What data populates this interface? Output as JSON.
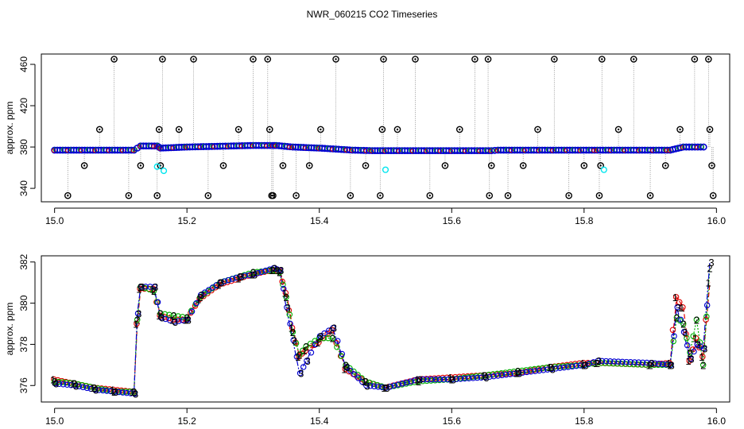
{
  "title": "NWR_060215  CO2 Timeseries",
  "colors": {
    "flag": "#000000",
    "ref": "#00e5ee",
    "s1": "#e00000",
    "s2": "#00b000",
    "s3": "#0000d0",
    "line": "#888888"
  },
  "chart_data": [
    {
      "type": "scatter",
      "ylabel": "approx. ppm",
      "xlim": [
        14.98,
        16.02
      ],
      "ylim": [
        327,
        470
      ],
      "xticks": [
        15.0,
        15.2,
        15.4,
        15.6,
        15.8,
        16.0
      ],
      "xtick_labels": [
        "15.0",
        "15.2",
        "15.4",
        "15.6",
        "15.8",
        "16.0"
      ],
      "yticks": [
        340,
        380,
        420,
        460
      ],
      "ytick_labels": [
        "340",
        "380",
        "420",
        "460"
      ],
      "baseline": [
        [
          15.0,
          377
        ],
        [
          15.12,
          377
        ],
        [
          15.13,
          381
        ],
        [
          15.155,
          381
        ],
        [
          15.16,
          379
        ],
        [
          15.2,
          380
        ],
        [
          15.3,
          381.5
        ],
        [
          15.33,
          381.5
        ],
        [
          15.335,
          381.5
        ],
        [
          15.36,
          380
        ],
        [
          15.4,
          379
        ],
        [
          15.45,
          377
        ],
        [
          15.48,
          376.5
        ],
        [
          15.5,
          376.5
        ],
        [
          15.6,
          376.5
        ],
        [
          15.66,
          376.5
        ],
        [
          15.67,
          377
        ],
        [
          15.82,
          377
        ],
        [
          15.93,
          377
        ],
        [
          15.95,
          380
        ],
        [
          15.985,
          380
        ]
      ],
      "reference_points": [
        [
          15.155,
          361
        ],
        [
          15.165,
          357
        ],
        [
          15.5,
          358
        ],
        [
          15.83,
          358
        ]
      ],
      "flagged_points": [
        [
          15.02,
          333
        ],
        [
          15.045,
          362
        ],
        [
          15.068,
          397
        ],
        [
          15.09,
          465
        ],
        [
          15.112,
          333
        ],
        [
          15.13,
          362
        ],
        [
          15.155,
          333
        ],
        [
          15.158,
          397
        ],
        [
          15.16,
          362
        ],
        [
          15.163,
          465
        ],
        [
          15.188,
          397
        ],
        [
          15.21,
          465
        ],
        [
          15.232,
          333
        ],
        [
          15.255,
          362
        ],
        [
          15.278,
          397
        ],
        [
          15.3,
          465
        ],
        [
          15.322,
          465
        ],
        [
          15.325,
          397
        ],
        [
          15.328,
          333
        ],
        [
          15.33,
          333
        ],
        [
          15.345,
          362
        ],
        [
          15.365,
          333
        ],
        [
          15.385,
          362
        ],
        [
          15.402,
          397
        ],
        [
          15.425,
          465
        ],
        [
          15.447,
          333
        ],
        [
          15.47,
          362
        ],
        [
          15.492,
          333
        ],
        [
          15.495,
          397
        ],
        [
          15.497,
          465
        ],
        [
          15.518,
          397
        ],
        [
          15.545,
          465
        ],
        [
          15.567,
          333
        ],
        [
          15.59,
          362
        ],
        [
          15.612,
          397
        ],
        [
          15.635,
          465
        ],
        [
          15.655,
          465
        ],
        [
          15.657,
          333
        ],
        [
          15.66,
          362
        ],
        [
          15.685,
          333
        ],
        [
          15.708,
          362
        ],
        [
          15.73,
          397
        ],
        [
          15.755,
          465
        ],
        [
          15.777,
          333
        ],
        [
          15.8,
          362
        ],
        [
          15.823,
          333
        ],
        [
          15.825,
          362
        ],
        [
          15.827,
          465
        ],
        [
          15.852,
          397
        ],
        [
          15.875,
          465
        ],
        [
          15.9,
          333
        ],
        [
          15.923,
          362
        ],
        [
          15.945,
          397
        ],
        [
          15.967,
          465
        ],
        [
          15.988,
          465
        ],
        [
          15.99,
          397
        ],
        [
          15.993,
          362
        ],
        [
          15.995,
          333
        ]
      ]
    },
    {
      "type": "line",
      "ylabel": "approx. ppm",
      "xlim": [
        14.98,
        16.02
      ],
      "ylim": [
        375.2,
        382.3
      ],
      "xticks": [
        15.0,
        15.2,
        15.4,
        15.6,
        15.8,
        16.0
      ],
      "xtick_labels": [
        "15.0",
        "15.2",
        "15.4",
        "15.6",
        "15.8",
        "16.0"
      ],
      "yticks": [
        376,
        378,
        380,
        382
      ],
      "ytick_labels": [
        "376",
        "378",
        "380",
        "382"
      ],
      "series": [
        {
          "label_char": "1",
          "x": [
            15.0,
            15.03,
            15.06,
            15.09,
            15.12,
            15.125,
            15.13,
            15.15,
            15.16,
            15.18,
            15.2,
            15.22,
            15.25,
            15.28,
            15.3,
            15.33,
            15.34,
            15.35,
            15.36,
            15.37,
            15.38,
            15.4,
            15.42,
            15.44,
            15.47,
            15.5,
            15.55,
            15.6,
            15.65,
            15.7,
            15.75,
            15.8,
            15.82,
            15.9,
            15.93,
            15.94,
            15.95,
            15.96,
            15.97,
            15.98,
            15.99
          ],
          "y": [
            376.3,
            376.1,
            375.9,
            375.8,
            375.7,
            379.0,
            380.7,
            380.7,
            379.4,
            379.2,
            379.2,
            380.2,
            380.9,
            381.2,
            381.4,
            381.6,
            381.6,
            380.5,
            378.8,
            377.4,
            377.7,
            378.1,
            378.7,
            376.8,
            376.2,
            375.9,
            376.3,
            376.4,
            376.5,
            376.6,
            376.9,
            377.1,
            377.1,
            377.0,
            377.1,
            380.3,
            379.8,
            377.2,
            378.3,
            377.4,
            381.0
          ]
        },
        {
          "label_char": "2",
          "x": [
            15.0,
            15.03,
            15.06,
            15.09,
            15.12,
            15.125,
            15.13,
            15.15,
            15.16,
            15.18,
            15.2,
            15.22,
            15.25,
            15.28,
            15.3,
            15.33,
            15.34,
            15.35,
            15.36,
            15.37,
            15.38,
            15.4,
            15.42,
            15.44,
            15.47,
            15.5,
            15.55,
            15.6,
            15.65,
            15.7,
            15.75,
            15.8,
            15.82,
            15.9,
            15.93,
            15.94,
            15.95,
            15.96,
            15.97,
            15.98,
            15.99
          ],
          "y": [
            376.2,
            376.1,
            375.9,
            375.7,
            375.7,
            379.2,
            380.8,
            380.6,
            379.5,
            379.4,
            379.3,
            380.3,
            381.0,
            381.3,
            381.5,
            381.6,
            381.5,
            380.3,
            378.6,
            377.5,
            377.9,
            378.3,
            378.3,
            377.0,
            376.2,
            375.9,
            376.2,
            376.3,
            376.5,
            376.7,
            376.9,
            377.0,
            377.1,
            377.0,
            377.0,
            379.3,
            379.0,
            377.6,
            379.2,
            377.0,
            381.7
          ]
        },
        {
          "label_char": "3",
          "x": [
            15.0,
            15.03,
            15.06,
            15.09,
            15.12,
            15.125,
            15.13,
            15.15,
            15.16,
            15.18,
            15.2,
            15.22,
            15.25,
            15.28,
            15.3,
            15.33,
            15.34,
            15.35,
            15.36,
            15.37,
            15.38,
            15.4,
            15.42,
            15.44,
            15.47,
            15.5,
            15.55,
            15.6,
            15.65,
            15.7,
            15.75,
            15.8,
            15.82,
            15.9,
            15.93,
            15.94,
            15.95,
            15.96,
            15.97,
            15.98,
            15.99
          ],
          "y": [
            376.1,
            376.0,
            375.8,
            375.7,
            375.6,
            379.5,
            380.8,
            380.8,
            379.3,
            379.1,
            379.2,
            380.4,
            381.0,
            381.3,
            381.4,
            381.7,
            381.6,
            379.8,
            378.2,
            376.6,
            377.2,
            378.4,
            378.8,
            376.9,
            376.0,
            375.9,
            376.3,
            376.3,
            376.4,
            376.6,
            376.8,
            377.0,
            377.2,
            377.1,
            377.0,
            379.8,
            378.6,
            377.3,
            378.0,
            377.8,
            382.0
          ]
        }
      ]
    }
  ]
}
